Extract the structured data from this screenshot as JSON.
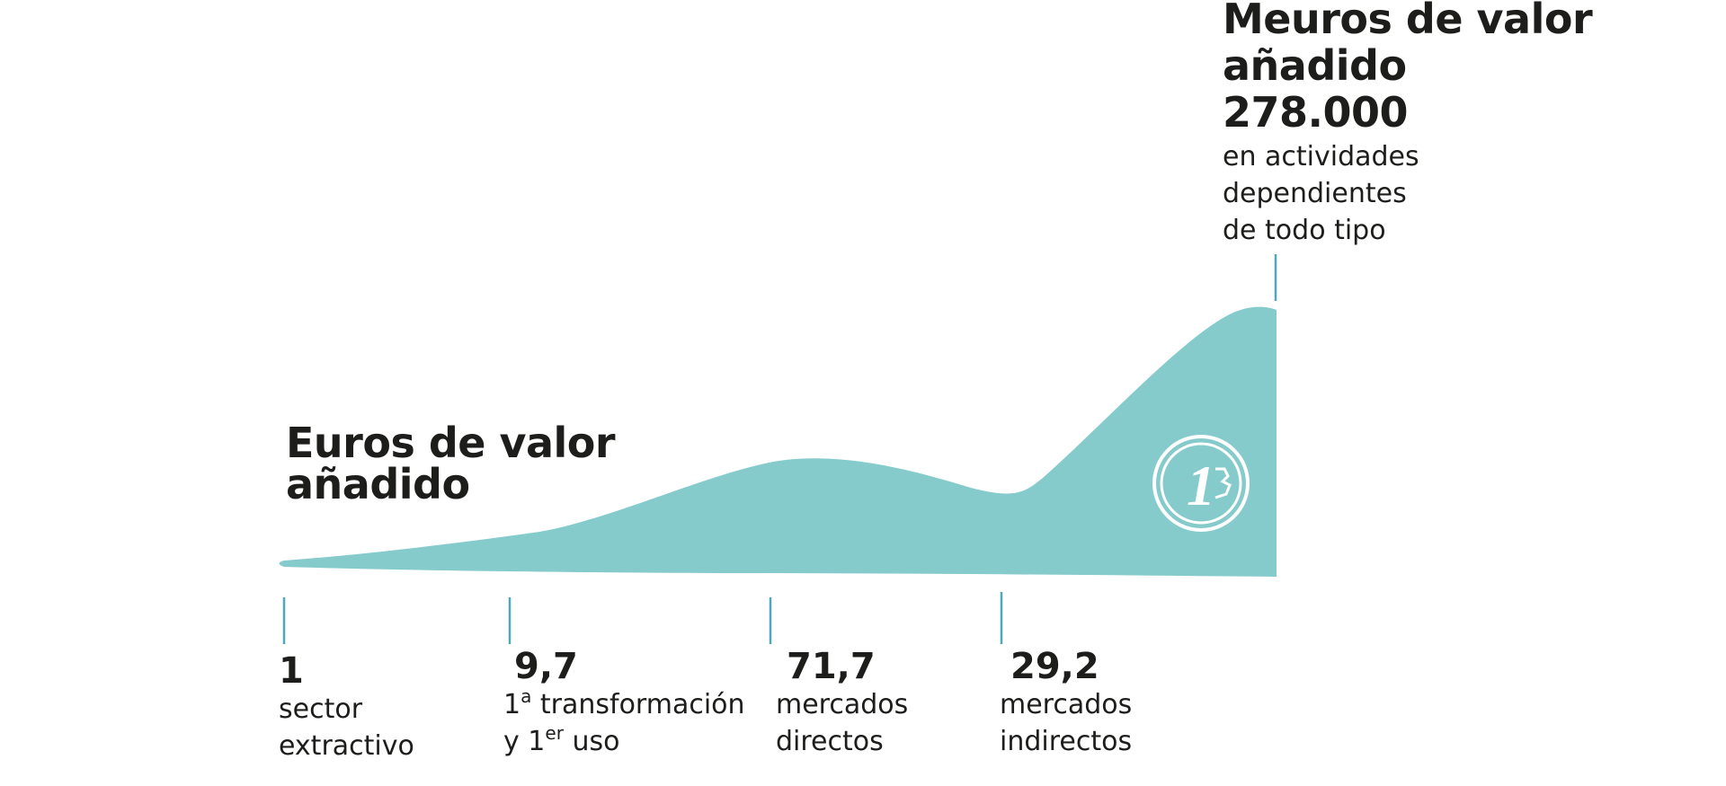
{
  "colors": {
    "area": "#86cbcb",
    "tick": "#4fa7bb",
    "text": "#1d1d1b"
  },
  "chart_data": {
    "type": "area",
    "title": "Euros de valor añadido",
    "stages": [
      {
        "value": "1",
        "label_line1": "sector",
        "label_line2": "extractivo"
      },
      {
        "value": "9,7",
        "label_line1": "1",
        "label_line1_sup": "a",
        "label_line1_rest": " transformación",
        "label_line2": "y 1",
        "label_line2_sup": "er",
        "label_line2_rest": " uso"
      },
      {
        "value": "71,7",
        "label_line1": "mercados",
        "label_line2": "directos"
      },
      {
        "value": "29,2",
        "label_line1": "mercados",
        "label_line2": "indirectos"
      }
    ],
    "total": {
      "title_line1": "Meuros de valor",
      "title_line2": "añadido",
      "value": "278.000",
      "desc_line1": "en actividades",
      "desc_line2": "dependientes",
      "desc_line3": "de todo tipo"
    },
    "icon": "euro-coin-icon"
  },
  "title_line1": "Euros de valor",
  "title_line2": "añadido"
}
